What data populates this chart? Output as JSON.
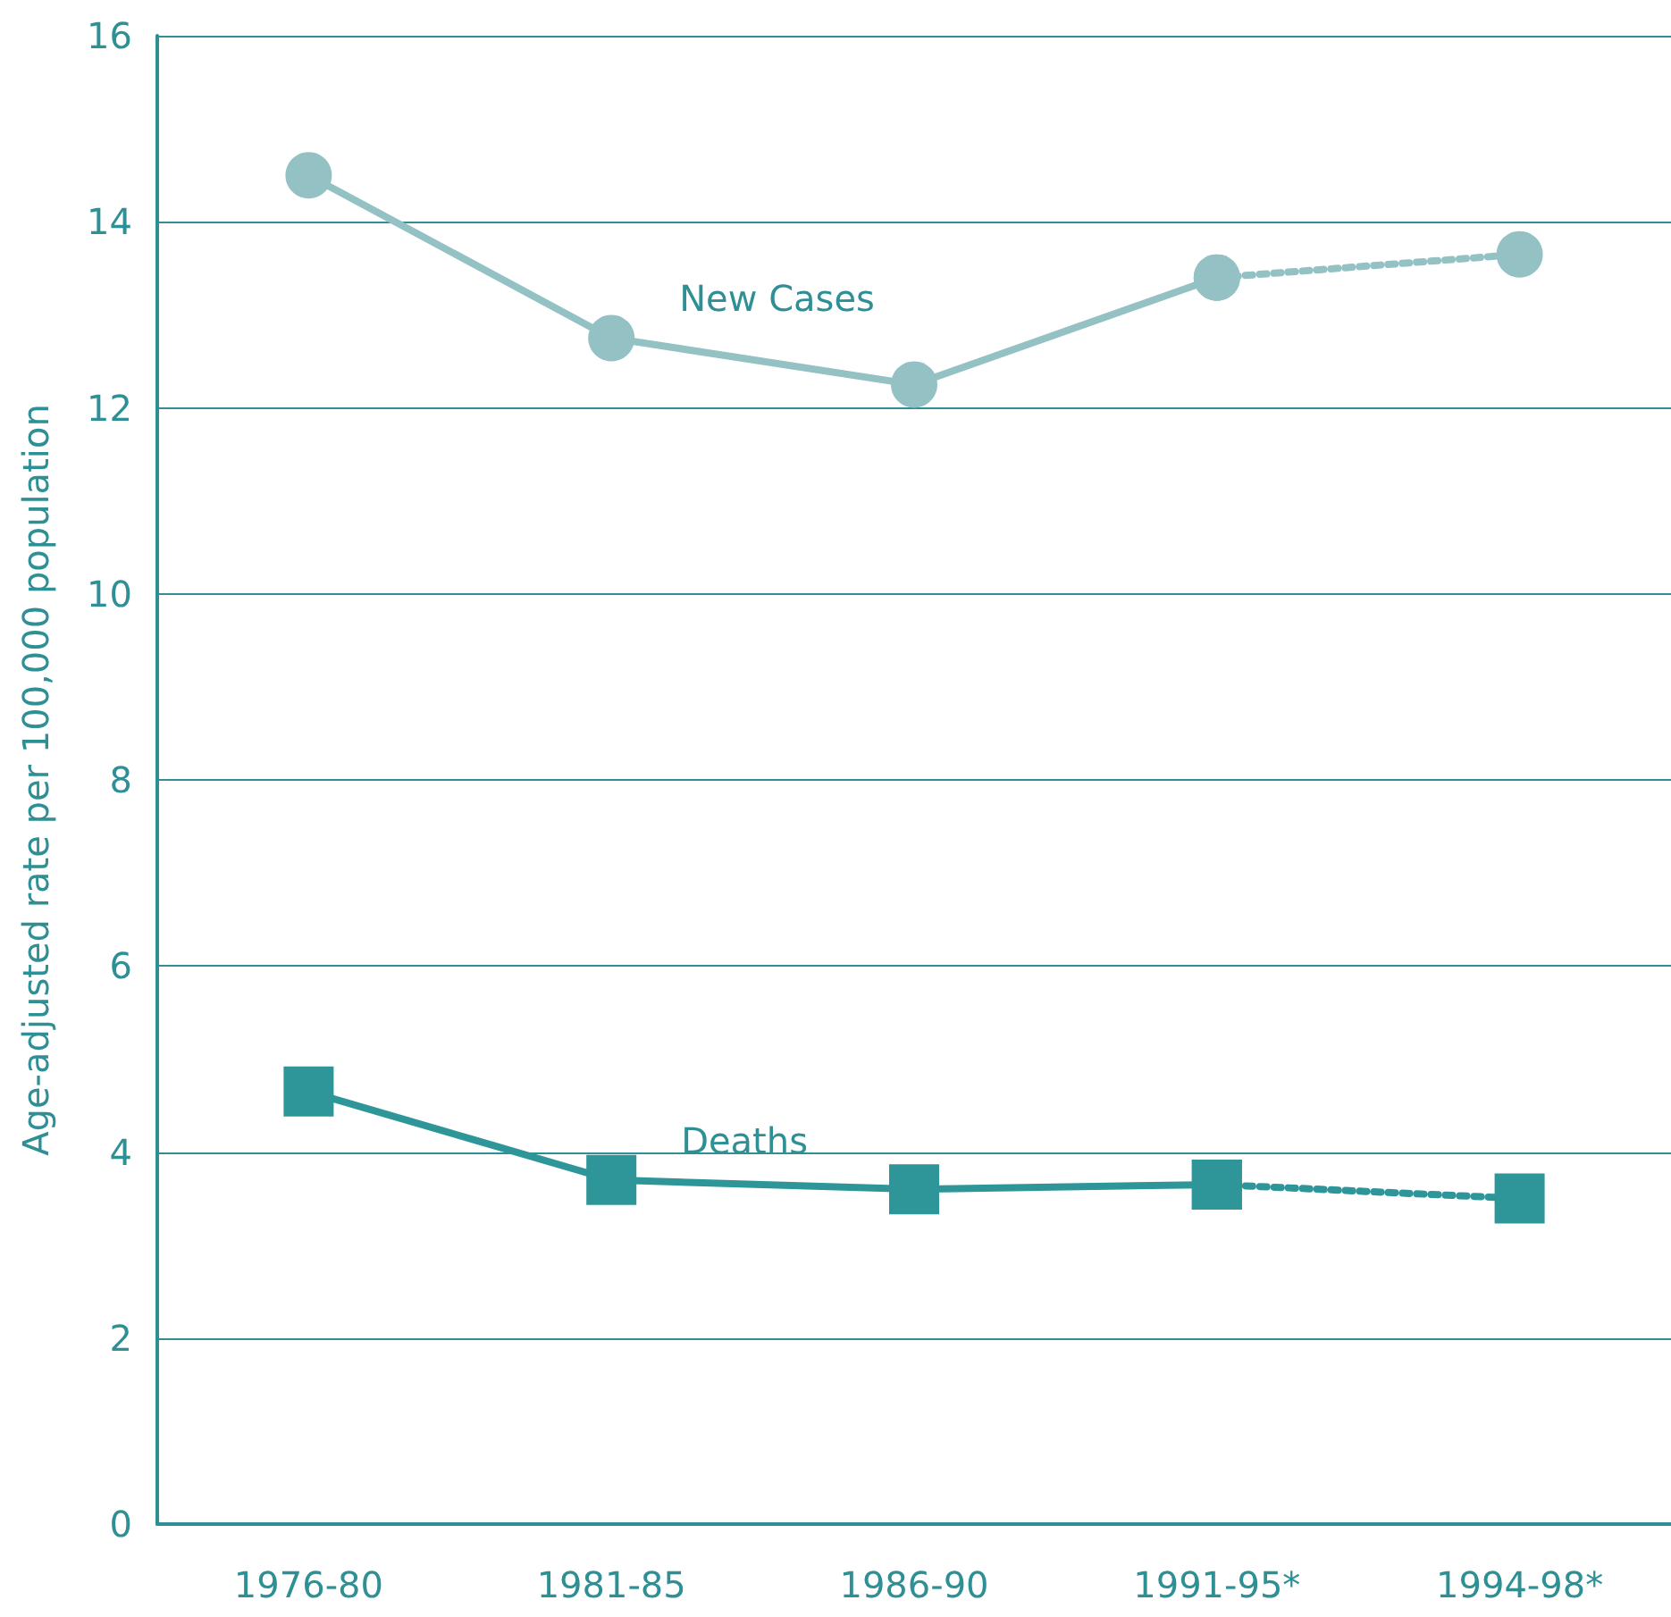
{
  "chart_data": {
    "type": "line",
    "ylabel": "Age-adjusted rate per 100,000 population",
    "categories": [
      "1976-80",
      "1981-85",
      "1986-90",
      "1991-95*",
      "1994-98*"
    ],
    "series": [
      {
        "name": "New Cases",
        "color": "#93c1c4",
        "marker": "circle",
        "line_style": "solid",
        "values": [
          14.5,
          12.75,
          12.25,
          13.4,
          null
        ]
      },
      {
        "color": "#93c1c4",
        "marker": "circle",
        "line_style": "dotted",
        "values": [
          null,
          null,
          null,
          13.4,
          13.65
        ]
      },
      {
        "name": "Deaths",
        "color": "#2e9598",
        "marker": "square",
        "line_style": "solid",
        "values": [
          4.65,
          3.7,
          3.6,
          3.65,
          null
        ]
      },
      {
        "color": "#2e9598",
        "marker": "square",
        "line_style": "dotted",
        "values": [
          null,
          null,
          null,
          3.65,
          3.5
        ]
      }
    ],
    "ylim": [
      0,
      16
    ],
    "yticks": [
      0,
      2,
      4,
      6,
      8,
      10,
      12,
      14,
      16
    ],
    "grid": "y",
    "legend": false
  }
}
